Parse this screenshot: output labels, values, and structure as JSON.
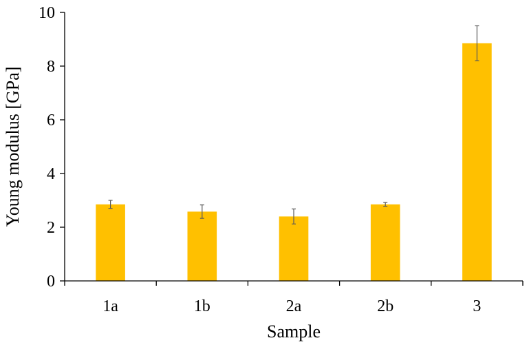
{
  "chart_data": {
    "type": "bar",
    "xlabel": "Sample",
    "ylabel": "Young modulus [GPa]",
    "categories": [
      "1a",
      "1b",
      "2a",
      "2b",
      "3"
    ],
    "values": [
      2.85,
      2.58,
      2.4,
      2.85,
      8.85
    ],
    "errors": [
      0.15,
      0.25,
      0.28,
      0.07,
      0.65
    ],
    "ylim": [
      0,
      10
    ],
    "yticks": [
      "0",
      "2",
      "4",
      "6",
      "8",
      "10"
    ],
    "grid": false,
    "legend": "none",
    "colors": {
      "bar": "#FFC000",
      "axis": "#000000",
      "error_bar": "#595959"
    }
  }
}
